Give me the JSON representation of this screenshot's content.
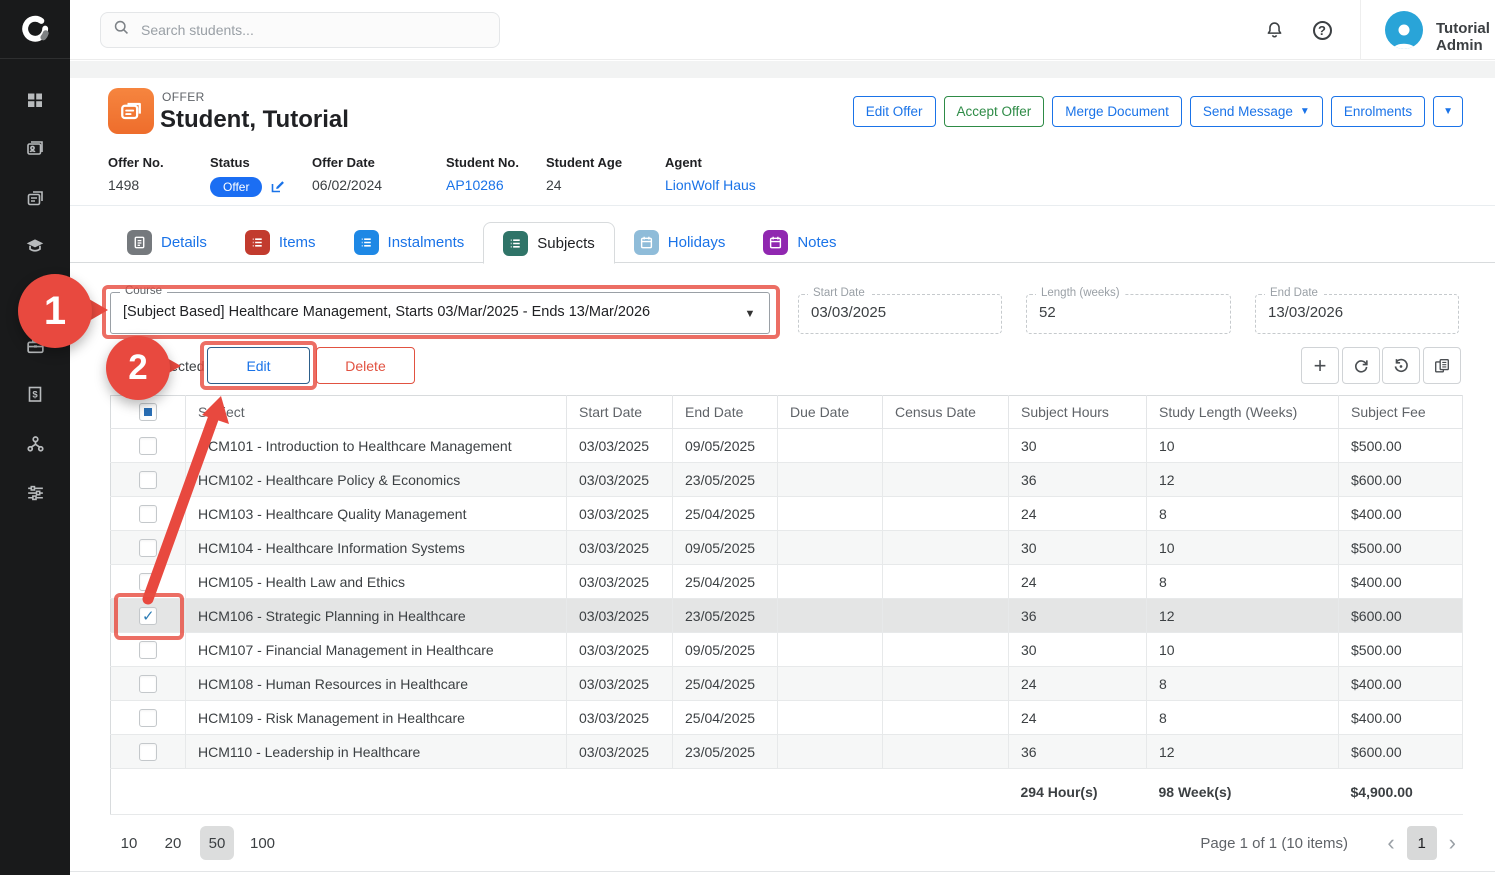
{
  "topbar": {
    "search_placeholder": "Search students...",
    "user_name": "Tutorial Admin",
    "icons": [
      "notifications",
      "help"
    ]
  },
  "sidebar": {
    "icons": [
      "dashboard",
      "contacts",
      "offers",
      "education",
      "briefcase",
      "billing",
      "network",
      "settings"
    ]
  },
  "offer_header": {
    "type_label": "OFFER",
    "title": "Student, Tutorial",
    "actions": [
      {
        "label": "Edit Offer",
        "color": "blue",
        "caret": false
      },
      {
        "label": "Accept Offer",
        "color": "green",
        "caret": false
      },
      {
        "label": "Merge Document",
        "color": "blue",
        "caret": false
      },
      {
        "label": "Send Message",
        "color": "blue",
        "caret": true
      },
      {
        "label": "Enrolments",
        "color": "blue",
        "caret": false
      },
      {
        "label": "",
        "color": "blue",
        "caret": true,
        "compact": true
      }
    ],
    "fields": [
      {
        "label": "Offer No.",
        "value": "1498",
        "type": "text"
      },
      {
        "label": "Status",
        "value": "Offer",
        "type": "status"
      },
      {
        "label": "Offer Date",
        "value": "06/02/2024",
        "type": "text"
      },
      {
        "label": "Student No.",
        "value": "AP10286",
        "type": "link"
      },
      {
        "label": "Student Age",
        "value": "24",
        "type": "text"
      },
      {
        "label": "Agent",
        "value": "LionWolf Haus",
        "type": "link"
      }
    ]
  },
  "tabs": [
    {
      "label": "Details",
      "color": "#75797d",
      "icon": "doc",
      "active": false
    },
    {
      "label": "Items",
      "color": "#c23b2e",
      "icon": "list",
      "active": false
    },
    {
      "label": "Instalments",
      "color": "#1e88e5",
      "icon": "list",
      "active": false
    },
    {
      "label": "Subjects",
      "color": "#2f7468",
      "icon": "list",
      "active": true
    },
    {
      "label": "Holidays",
      "color": "#8fbcd9",
      "icon": "calendar",
      "active": false
    },
    {
      "label": "Notes",
      "color": "#9027b0",
      "icon": "calendar",
      "active": false
    }
  ],
  "course_panel": {
    "course_label": "Course",
    "course_value": "[Subject Based] Healthcare Management, Starts 03/Mar/2025 - Ends 13/Mar/2026",
    "start_date": {
      "label": "Start Date",
      "value": "03/03/2025"
    },
    "length": {
      "label": "Length (weeks)",
      "value": "52"
    },
    "end_date": {
      "label": "End Date",
      "value": "13/03/2026"
    }
  },
  "toolbar": {
    "selected_label": "Selected",
    "edit_label": "Edit",
    "delete_label": "Delete",
    "grid_actions": [
      "add",
      "refresh",
      "revert",
      "column-chooser"
    ]
  },
  "table": {
    "columns": [
      "Subject",
      "Start Date",
      "End Date",
      "Due Date",
      "Census Date",
      "Subject Hours",
      "Study Length (Weeks)",
      "Subject Fee"
    ],
    "rows": [
      {
        "subject": "HCM101 - Introduction to Healthcare Management",
        "start": "03/03/2025",
        "end": "09/05/2025",
        "due": "",
        "census": "",
        "hours": "30",
        "weeks": "10",
        "fee": "$500.00",
        "checked": false
      },
      {
        "subject": "HCM102 - Healthcare Policy & Economics",
        "start": "03/03/2025",
        "end": "23/05/2025",
        "due": "",
        "census": "",
        "hours": "36",
        "weeks": "12",
        "fee": "$600.00",
        "checked": false
      },
      {
        "subject": "HCM103 - Healthcare Quality Management",
        "start": "03/03/2025",
        "end": "25/04/2025",
        "due": "",
        "census": "",
        "hours": "24",
        "weeks": "8",
        "fee": "$400.00",
        "checked": false
      },
      {
        "subject": "HCM104 - Healthcare Information Systems",
        "start": "03/03/2025",
        "end": "09/05/2025",
        "due": "",
        "census": "",
        "hours": "30",
        "weeks": "10",
        "fee": "$500.00",
        "checked": false
      },
      {
        "subject": "HCM105 - Health Law and Ethics",
        "start": "03/03/2025",
        "end": "25/04/2025",
        "due": "",
        "census": "",
        "hours": "24",
        "weeks": "8",
        "fee": "$400.00",
        "checked": false
      },
      {
        "subject": "HCM106 - Strategic Planning in Healthcare",
        "start": "03/03/2025",
        "end": "23/05/2025",
        "due": "",
        "census": "",
        "hours": "36",
        "weeks": "12",
        "fee": "$600.00",
        "checked": true
      },
      {
        "subject": "HCM107 - Financial Management in Healthcare",
        "start": "03/03/2025",
        "end": "09/05/2025",
        "due": "",
        "census": "",
        "hours": "30",
        "weeks": "10",
        "fee": "$500.00",
        "checked": false
      },
      {
        "subject": "HCM108 - Human Resources in Healthcare",
        "start": "03/03/2025",
        "end": "25/04/2025",
        "due": "",
        "census": "",
        "hours": "24",
        "weeks": "8",
        "fee": "$400.00",
        "checked": false
      },
      {
        "subject": "HCM109 - Risk Management in Healthcare",
        "start": "03/03/2025",
        "end": "25/04/2025",
        "due": "",
        "census": "",
        "hours": "24",
        "weeks": "8",
        "fee": "$400.00",
        "checked": false
      },
      {
        "subject": "HCM110 - Leadership in Healthcare",
        "start": "03/03/2025",
        "end": "23/05/2025",
        "due": "",
        "census": "",
        "hours": "36",
        "weeks": "12",
        "fee": "$600.00",
        "checked": false
      }
    ],
    "totals": {
      "hours": "294 Hour(s)",
      "weeks": "98 Week(s)",
      "fee": "$4,900.00"
    }
  },
  "pagination": {
    "page_sizes": [
      "10",
      "20",
      "50",
      "100"
    ],
    "active_size": "50",
    "info": "Page 1 of 1 (10 items)",
    "current_page": "1"
  },
  "annotations": {
    "step1": "1",
    "step2": "2"
  },
  "colors": {
    "accent_blue": "#1a73e8",
    "accept_green": "#2e8b46",
    "delete_red": "#e15241",
    "status_pill": "#1b6ef3",
    "annotation_red": "#e8493f",
    "avatar_blue": "#29a4d8",
    "offer_icon_orange": "#ee6d2c",
    "sidebar_bg": "#191a1b"
  }
}
